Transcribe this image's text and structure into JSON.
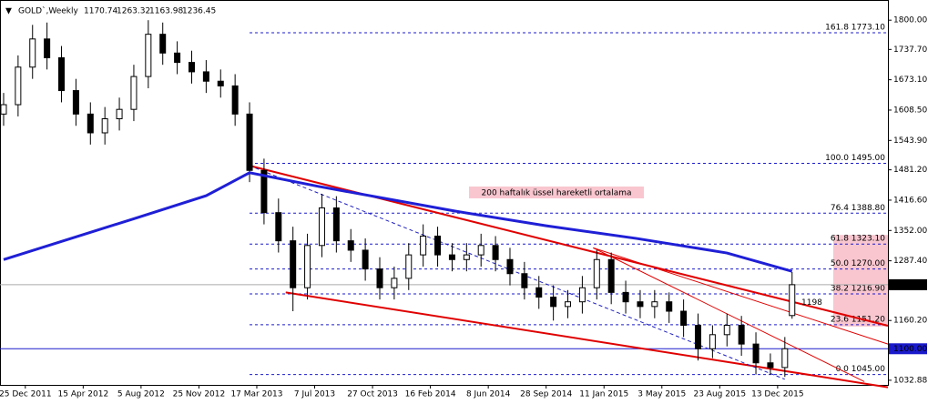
{
  "chart_data": {
    "type": "candlestick",
    "symbol": "GOLD`,Weekly",
    "x": [
      -6,
      -2,
      2,
      6,
      10,
      14,
      18,
      22,
      26,
      30,
      34,
      38,
      42,
      46,
      50,
      54,
      58,
      62,
      66,
      70,
      74,
      78,
      82,
      86,
      90,
      94,
      98,
      102,
      106,
      110,
      114,
      118,
      122,
      126,
      130,
      134,
      138,
      142,
      146,
      150,
      154,
      158,
      162,
      166,
      170,
      174,
      178,
      182,
      186,
      190,
      194,
      198,
      202,
      206,
      210,
      212
    ],
    "open": [
      1600,
      1620,
      1700,
      1760,
      1720,
      1650,
      1600,
      1560,
      1590,
      1610,
      1680,
      1770,
      1730,
      1710,
      1690,
      1670,
      1660,
      1600,
      1480,
      1390,
      1330,
      1230,
      1320,
      1400,
      1330,
      1310,
      1270,
      1230,
      1250,
      1300,
      1340,
      1300,
      1290,
      1300,
      1320,
      1290,
      1260,
      1230,
      1210,
      1190,
      1200,
      1230,
      1290,
      1220,
      1200,
      1190,
      1200,
      1180,
      1150,
      1100,
      1130,
      1150,
      1110,
      1070,
      1060,
      1170.74
    ],
    "high": [
      1645,
      1725,
      1790,
      1795,
      1745,
      1675,
      1625,
      1615,
      1635,
      1705,
      1800,
      1795,
      1755,
      1735,
      1715,
      1695,
      1685,
      1625,
      1505,
      1420,
      1360,
      1345,
      1430,
      1425,
      1355,
      1335,
      1295,
      1275,
      1325,
      1365,
      1360,
      1325,
      1325,
      1345,
      1340,
      1315,
      1285,
      1255,
      1235,
      1225,
      1255,
      1310,
      1305,
      1245,
      1225,
      1225,
      1220,
      1205,
      1175,
      1150,
      1175,
      1170,
      1135,
      1090,
      1125,
      1263.32
    ],
    "low": [
      1575,
      1595,
      1675,
      1695,
      1625,
      1575,
      1535,
      1535,
      1565,
      1585,
      1655,
      1705,
      1685,
      1665,
      1645,
      1635,
      1575,
      1455,
      1365,
      1305,
      1180,
      1205,
      1295,
      1305,
      1285,
      1245,
      1205,
      1205,
      1225,
      1275,
      1275,
      1265,
      1265,
      1275,
      1265,
      1235,
      1205,
      1185,
      1160,
      1165,
      1175,
      1205,
      1195,
      1175,
      1165,
      1165,
      1155,
      1125,
      1075,
      1080,
      1105,
      1085,
      1045,
      1045,
      1040,
      1163.98
    ],
    "close": [
      1620,
      1700,
      1760,
      1720,
      1650,
      1600,
      1560,
      1590,
      1610,
      1680,
      1770,
      1730,
      1710,
      1690,
      1670,
      1660,
      1600,
      1480,
      1390,
      1330,
      1230,
      1320,
      1400,
      1330,
      1310,
      1270,
      1230,
      1250,
      1300,
      1340,
      1300,
      1290,
      1300,
      1320,
      1290,
      1260,
      1230,
      1210,
      1190,
      1200,
      1230,
      1290,
      1220,
      1200,
      1190,
      1200,
      1180,
      1150,
      1100,
      1130,
      1150,
      1110,
      1070,
      1060,
      1100,
      1236.45
    ],
    "ma": {
      "color": "#1f1fd6",
      "x": [
        -6,
        30,
        50,
        62,
        81,
        119,
        144,
        169,
        194,
        212
      ],
      "values": [
        1290,
        1377,
        1426,
        1475,
        1446,
        1393,
        1362,
        1335,
        1304,
        1265
      ]
    },
    "fib": [
      {
        "label": "161.8 1773.10",
        "value": 1773.1
      },
      {
        "label": "100.0 1495.00",
        "value": 1495
      },
      {
        "label": "76.4 1388.80",
        "value": 1388.8
      },
      {
        "label": "61.8 1323.10",
        "value": 1323.1
      },
      {
        "label": "50.0 1270.00",
        "value": 1270
      },
      {
        "label": "38.2 1216.90",
        "value": 1216.9
      },
      {
        "label": "23.6 1151.20",
        "value": 1151.2
      },
      {
        "label": "0.0 1045.00",
        "value": 1045
      }
    ],
    "trendlines": [
      {
        "color": "#e00000",
        "x": [
          62,
          238.5
        ],
        "y": [
          1490,
          1149
        ]
      },
      {
        "color": "#e00000",
        "x": [
          72,
          238.5
        ],
        "y": [
          1220,
          1018
        ]
      },
      {
        "color": "#e00000",
        "x": [
          157,
          238.5
        ],
        "y": [
          1315,
          1110
        ]
      },
      {
        "color": "#e00000",
        "x": [
          157,
          232
        ],
        "y": [
          1315,
          1030
        ]
      },
      {
        "color": "#2020c0",
        "x": [
          62,
          210
        ],
        "y": [
          1490,
          1035
        ]
      }
    ],
    "annotation": "200 haftalık üssel hareketli ortalama",
    "marker_level": 1198,
    "hline": {
      "value": 1100,
      "label": "1100.00"
    },
    "xlim": [
      -7,
      238.5
    ],
    "xticks": [
      {
        "value": 0,
        "label": "25 Dec 2011"
      },
      {
        "value": 16,
        "label": "15 Apr 2012"
      },
      {
        "value": 32,
        "label": "5 Aug 2012"
      },
      {
        "value": 48,
        "label": "25 Nov 2012"
      },
      {
        "value": 64,
        "label": "17 Mar 2013"
      },
      {
        "value": 80,
        "label": "7 Jul 2013"
      },
      {
        "value": 96,
        "label": "27 Oct 2013"
      },
      {
        "value": 112,
        "label": "16 Feb 2014"
      },
      {
        "value": 128,
        "label": "8 Jun 2014"
      },
      {
        "value": 144,
        "label": "28 Sep 2014"
      },
      {
        "value": 160,
        "label": "11 Jan 2015"
      },
      {
        "value": 176,
        "label": "3 May 2015"
      },
      {
        "value": 192,
        "label": "23 Aug 2015"
      },
      {
        "value": 208,
        "label": "13 Dec 2015"
      }
    ],
    "ylim": [
      1023,
      1843
    ],
    "yticks": [
      {
        "value": 1800,
        "label": "1800.00"
      },
      {
        "value": 1737.7,
        "label": "1737.70"
      },
      {
        "value": 1673.1,
        "label": "1673.10"
      },
      {
        "value": 1608.5,
        "label": "1608.50"
      },
      {
        "value": 1543.9,
        "label": "1543.90"
      },
      {
        "value": 1481.2,
        "label": "1481.20"
      },
      {
        "value": 1416.6,
        "label": "1416.60"
      },
      {
        "value": 1352,
        "label": "1352.00"
      },
      {
        "value": 1287.4,
        "label": "1287.40"
      },
      {
        "value": 1160.2,
        "label": "1160.20"
      },
      {
        "value": 1032.88,
        "label": "1032.88"
      }
    ]
  }
}
